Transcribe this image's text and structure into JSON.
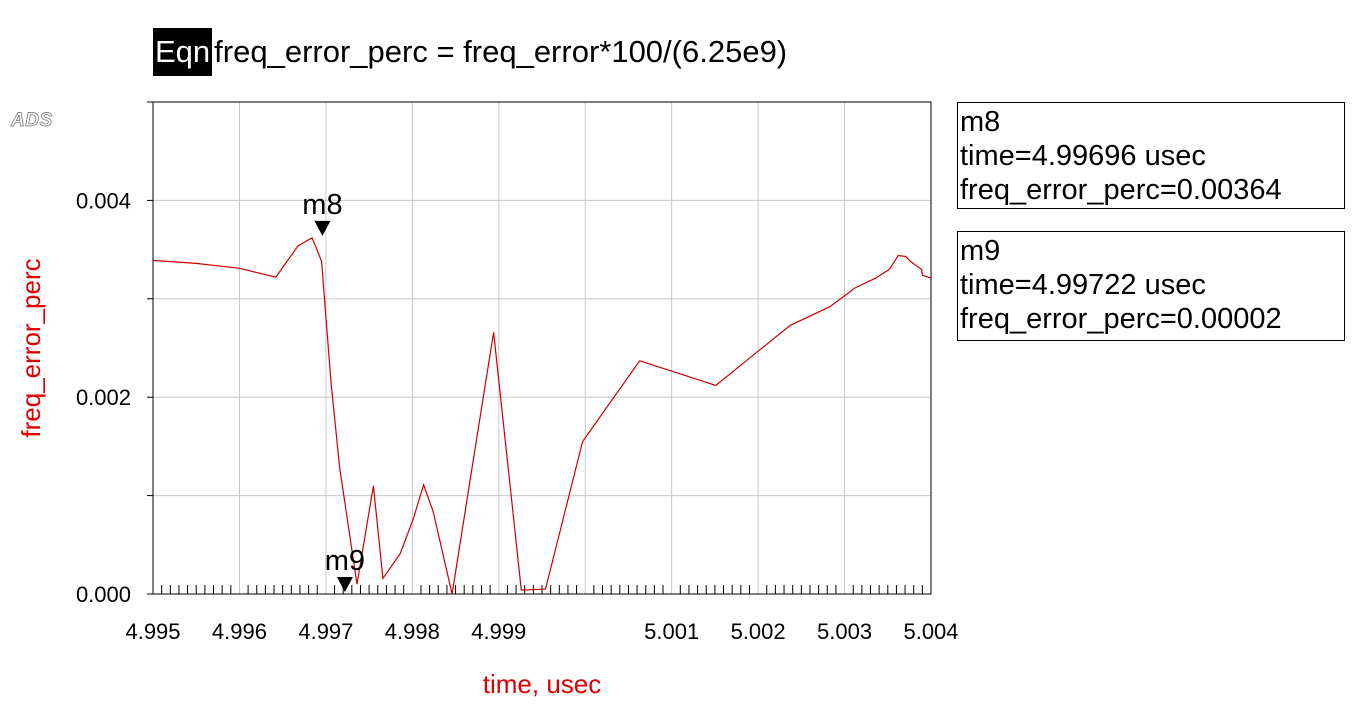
{
  "equation": {
    "tag": "Eqn",
    "expression": "freq_error_perc = freq_error*100/(6.25e9)"
  },
  "logo": "ADS",
  "colors": {
    "trace": "#cc0000",
    "axis_label": "#e00000",
    "grid": "#c8c8c8"
  },
  "chart_data": {
    "type": "line",
    "xlabel": "time, usec",
    "ylabel": "freq_error_perc",
    "xlim": [
      4.995,
      5.004
    ],
    "ylim": [
      0.0,
      0.005
    ],
    "grid": true,
    "x_ticks": [
      4.995,
      4.996,
      4.997,
      4.998,
      4.999,
      5.0,
      5.001,
      5.002,
      5.003,
      5.004
    ],
    "x_tick_labels": [
      "4.995",
      "4.996",
      "4.997",
      "4.998",
      "4.999",
      "5.001",
      "5.002",
      "5.003",
      "5.004"
    ],
    "y_ticks": [
      0.0,
      0.001,
      0.002,
      0.003,
      0.004,
      0.005
    ],
    "y_tick_labels": [
      "0.000",
      "0.002",
      "0.004"
    ],
    "y_tick_label_values": [
      0.0,
      0.002,
      0.004
    ],
    "series": [
      {
        "x": [
          4.995,
          4.9955,
          4.996,
          4.99642,
          4.99655,
          4.99668,
          4.99684,
          4.99695,
          4.99706,
          4.99716,
          4.99736,
          4.99755,
          4.99766,
          4.99786,
          4.99801,
          4.99813,
          4.99824,
          4.99846,
          4.99867,
          4.99894,
          4.99926,
          4.99954,
          4.99997,
          5.00063,
          5.00151,
          5.00237,
          5.00283,
          5.00312,
          5.00336,
          5.00352,
          5.00362,
          5.00371,
          5.00376,
          5.00389,
          5.0039,
          5.00408
        ],
        "y": [
          0.00339,
          0.00336,
          0.00331,
          0.00322,
          0.00338,
          0.00354,
          0.00362,
          0.00338,
          0.00214,
          0.00128,
          0.0001,
          0.0011,
          0.00016,
          0.00041,
          0.00076,
          0.00111,
          0.00084,
          0.0,
          0.00117,
          0.00266,
          4e-05,
          5e-05,
          0.00155,
          0.00237,
          0.00212,
          0.00273,
          0.00292,
          0.00311,
          0.00321,
          0.0033,
          0.00344,
          0.00343,
          0.00338,
          0.0033,
          0.00324,
          0.00321
        ],
        "_note": ""
      }
    ],
    "markers": [
      {
        "name": "m8",
        "x": 4.99696,
        "y": 0.00364,
        "lines": [
          "m8",
          "time=4.99696 usec",
          "freq_error_perc=0.00364"
        ]
      },
      {
        "name": "m9",
        "x": 4.99722,
        "y": 2e-05,
        "lines": [
          "m9",
          "time=4.99722 usec",
          "freq_error_perc=0.00002"
        ]
      }
    ]
  }
}
